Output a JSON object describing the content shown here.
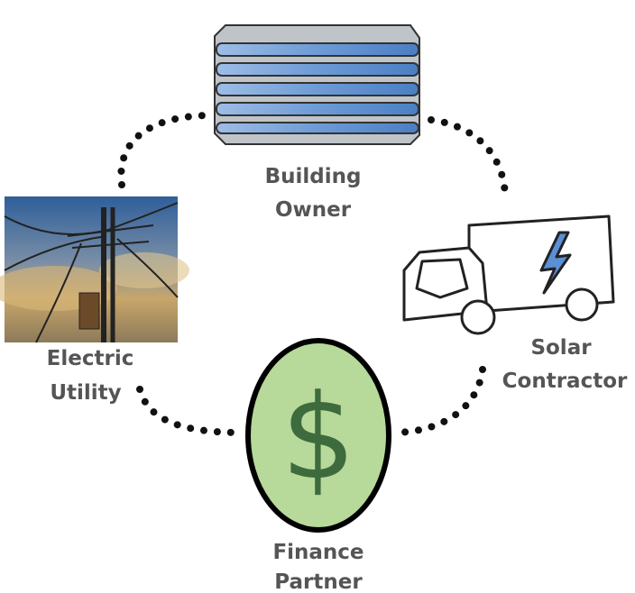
{
  "nodes": [
    {
      "label": [
        "Building",
        "Owner"
      ]
    },
    {
      "label": [
        "Solar",
        "Contractor"
      ]
    },
    {
      "label": [
        "Finance",
        "Partner"
      ],
      "symbol": "$"
    },
    {
      "label": [
        "Electric",
        "Utility"
      ]
    }
  ]
}
